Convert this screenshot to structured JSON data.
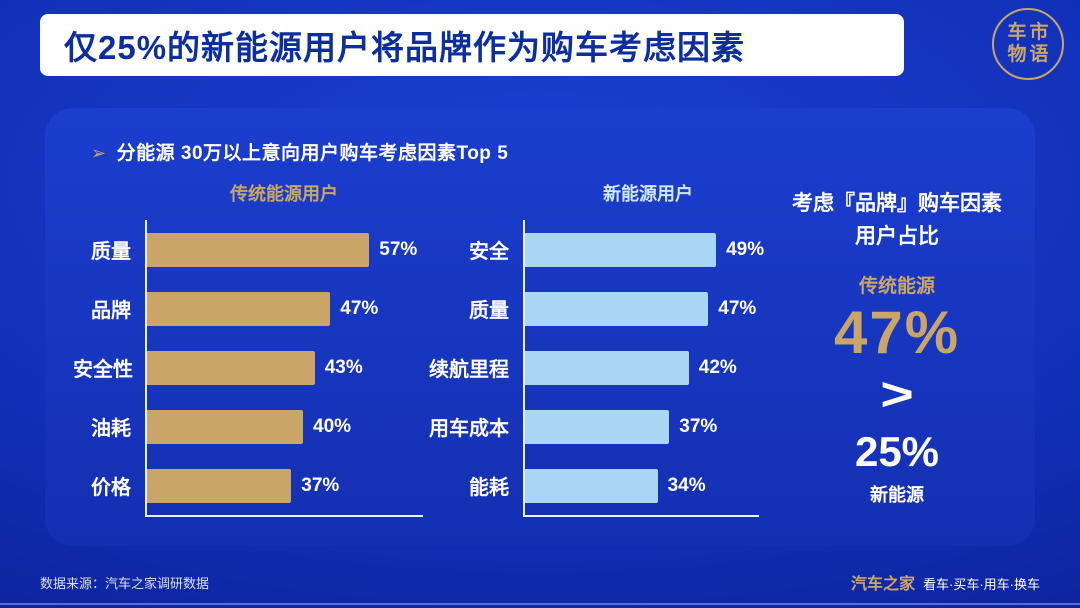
{
  "page": {
    "title": "仅25%的新能源用户将品牌作为购车考虑因素",
    "logo_line1": "车市",
    "logo_line2": "物语",
    "subtitle_arrow": "➢",
    "subtitle": "分能源 30万以上意向用户购车考虑因素Top 5"
  },
  "chart_data": [
    {
      "type": "bar",
      "orientation": "horizontal",
      "title": "传统能源用户",
      "categories": [
        "质量",
        "品牌",
        "安全性",
        "油耗",
        "价格"
      ],
      "values": [
        57,
        47,
        43,
        40,
        37
      ],
      "value_suffix": "%",
      "bar_color": "#C9A567",
      "xlim": [
        0,
        60
      ],
      "grid": false,
      "legend": "none"
    },
    {
      "type": "bar",
      "orientation": "horizontal",
      "title": "新能源用户",
      "categories": [
        "安全",
        "质量",
        "续航里程",
        "用车成本",
        "能耗"
      ],
      "values": [
        49,
        47,
        42,
        37,
        34
      ],
      "value_suffix": "%",
      "bar_color": "#A9D6F5",
      "xlim": [
        0,
        60
      ],
      "grid": false,
      "legend": "none"
    }
  ],
  "highlight": {
    "line1": "考虑『品牌』购车因素",
    "line2": "用户占比",
    "traditional_label": "传统能源",
    "traditional_value": "47%",
    "comparator": ">",
    "new_value": "25%",
    "new_label": "新能源"
  },
  "footer": {
    "source": "数据来源：汽车之家调研数据",
    "brand": "汽车之家",
    "brand_suffix": "看车·买车·用车·换车"
  },
  "colors": {
    "gold": "#C9A567",
    "light_blue": "#A9D6F5",
    "title_text": "#0d2e9e",
    "background": "#1130b8"
  }
}
